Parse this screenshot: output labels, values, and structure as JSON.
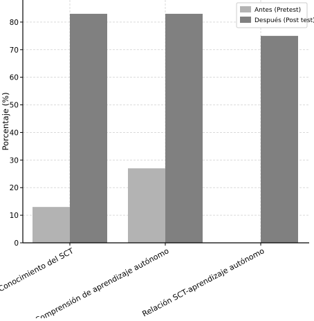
{
  "chart_data": {
    "type": "bar",
    "title": "",
    "xlabel": "",
    "ylabel": "Porcentaje (%)",
    "categories": [
      "Conocimiento del SCT",
      "Comprensión de aprendizaje autónomo",
      "Relación SCT-aprendizaje autónomo"
    ],
    "series": [
      {
        "name": "Antes (Pretest)",
        "values": [
          13,
          27,
          0
        ],
        "color": "#b3b3b3"
      },
      {
        "name": "Después (Post test)",
        "values": [
          83,
          83,
          75
        ],
        "color": "#808080"
      }
    ],
    "ylim": [
      0,
      88
    ],
    "yticks": [
      0,
      10,
      20,
      30,
      40,
      50,
      60,
      70,
      80
    ],
    "grid": true,
    "legend_position": "top-right"
  }
}
